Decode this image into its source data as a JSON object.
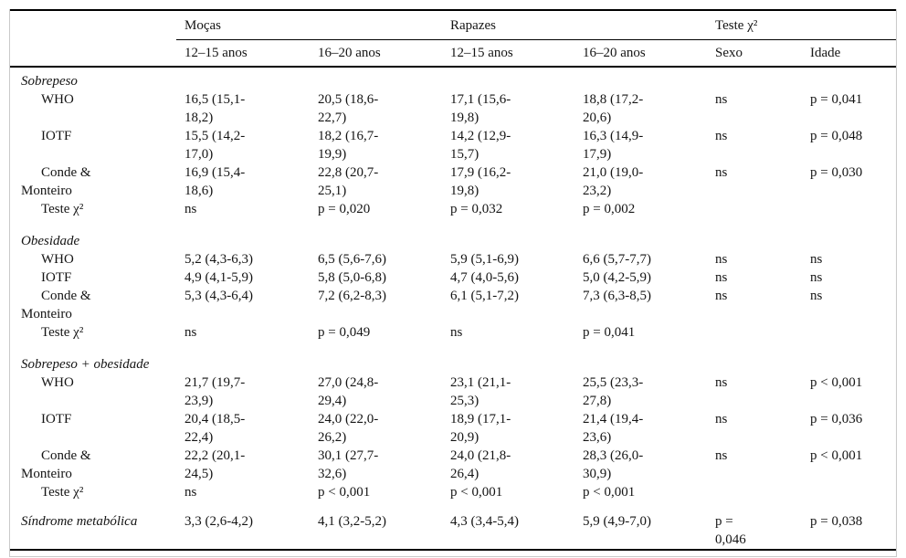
{
  "table": {
    "groups": {
      "mocas": "Moças",
      "rapazes": "Rapazes",
      "teste": "Teste χ²"
    },
    "sub_headers": [
      "12–15 anos",
      "16–20 anos",
      "12–15 anos",
      "16–20 anos",
      "Sexo",
      "Idade"
    ],
    "rows": [
      {
        "label": "Sobrepeso",
        "cells": [
          "",
          "",
          "",
          "",
          "",
          ""
        ]
      },
      {
        "label": "WHO",
        "cells": [
          "16,5 (15,1-\n18,2)",
          "20,5 (18,6-\n22,7)",
          "17,1 (15,6-\n19,8)",
          "18,8 (17,2-\n20,6)",
          "ns",
          "p = 0,041"
        ]
      },
      {
        "label": "IOTF",
        "cells": [
          "15,5 (14,2-\n17,0)",
          "18,2 (16,7-\n19,9)",
          "14,2 (12,9-\n15,7)",
          "16,3 (14,9-\n17,9)",
          "ns",
          "p = 0,048"
        ]
      },
      {
        "label": "Conde &\nMonteiro",
        "cells": [
          "16,9 (15,4-\n18,6)",
          "22,8 (20,7-\n25,1)",
          "17,9 (16,2-\n19,8)",
          "21,0 (19,0-\n23,2)",
          "ns",
          "p = 0,030"
        ]
      },
      {
        "label": "Teste χ²",
        "cells": [
          "ns",
          "p = 0,020",
          "p = 0,032",
          "p = 0,002",
          "",
          ""
        ]
      },
      {
        "label": "Obesidade",
        "cells": [
          "",
          "",
          "",
          "",
          "",
          ""
        ]
      },
      {
        "label": "WHO",
        "cells": [
          "5,2 (4,3-6,3)",
          "6,5 (5,6-7,6)",
          "5,9 (5,1-6,9)",
          "6,6 (5,7-7,7)",
          "ns",
          "ns"
        ]
      },
      {
        "label": "IOTF",
        "cells": [
          "4,9 (4,1-5,9)",
          "5,8 (5,0-6,8)",
          "4,7 (4,0-5,6)",
          "5,0 (4,2-5,9)",
          "ns",
          "ns"
        ]
      },
      {
        "label": "Conde &\nMonteiro",
        "cells": [
          "5,3 (4,3-6,4)",
          "7,2 (6,2-8,3)",
          "6,1 (5,1-7,2)",
          "7,3 (6,3-8,5)",
          "ns",
          "ns"
        ]
      },
      {
        "label": "Teste χ²",
        "cells": [
          "ns",
          "p = 0,049",
          "ns",
          "p = 0,041",
          "",
          ""
        ]
      },
      {
        "label": "Sobrepeso + obesidade",
        "cells": [
          "",
          "",
          "",
          "",
          "",
          ""
        ]
      },
      {
        "label": "WHO",
        "cells": [
          "21,7 (19,7-\n23,9)",
          "27,0 (24,8-\n29,4)",
          "23,1 (21,1-\n25,3)",
          "25,5 (23,3-\n27,8)",
          "ns",
          "p < 0,001"
        ]
      },
      {
        "label": "IOTF",
        "cells": [
          "20,4 (18,5-\n22,4)",
          "24,0 (22,0-\n26,2)",
          "18,9 (17,1-\n20,9)",
          "21,4 (19,4-\n23,6)",
          "ns",
          "p = 0,036"
        ]
      },
      {
        "label": "Conde &\nMonteiro",
        "cells": [
          "22,2 (20,1-\n24,5)",
          "30,1 (27,7-\n32,6)",
          "24,0 (21,8-\n26,4)",
          "28,3 (26,0-\n30,9)",
          "ns",
          "p < 0,001"
        ]
      },
      {
        "label": "Teste χ²",
        "cells": [
          "ns",
          "p < 0,001",
          "p < 0,001",
          "p < 0,001",
          "",
          ""
        ]
      },
      {
        "label": "Síndrome metabólica",
        "cells": [
          "3,3 (2,6-4,2)",
          "4,1 (3,2-5,2)",
          "4,3 (3,4-5,4)",
          "5,9 (4,9-7,0)",
          "p =\n0,046",
          "p = 0,038"
        ]
      }
    ]
  }
}
